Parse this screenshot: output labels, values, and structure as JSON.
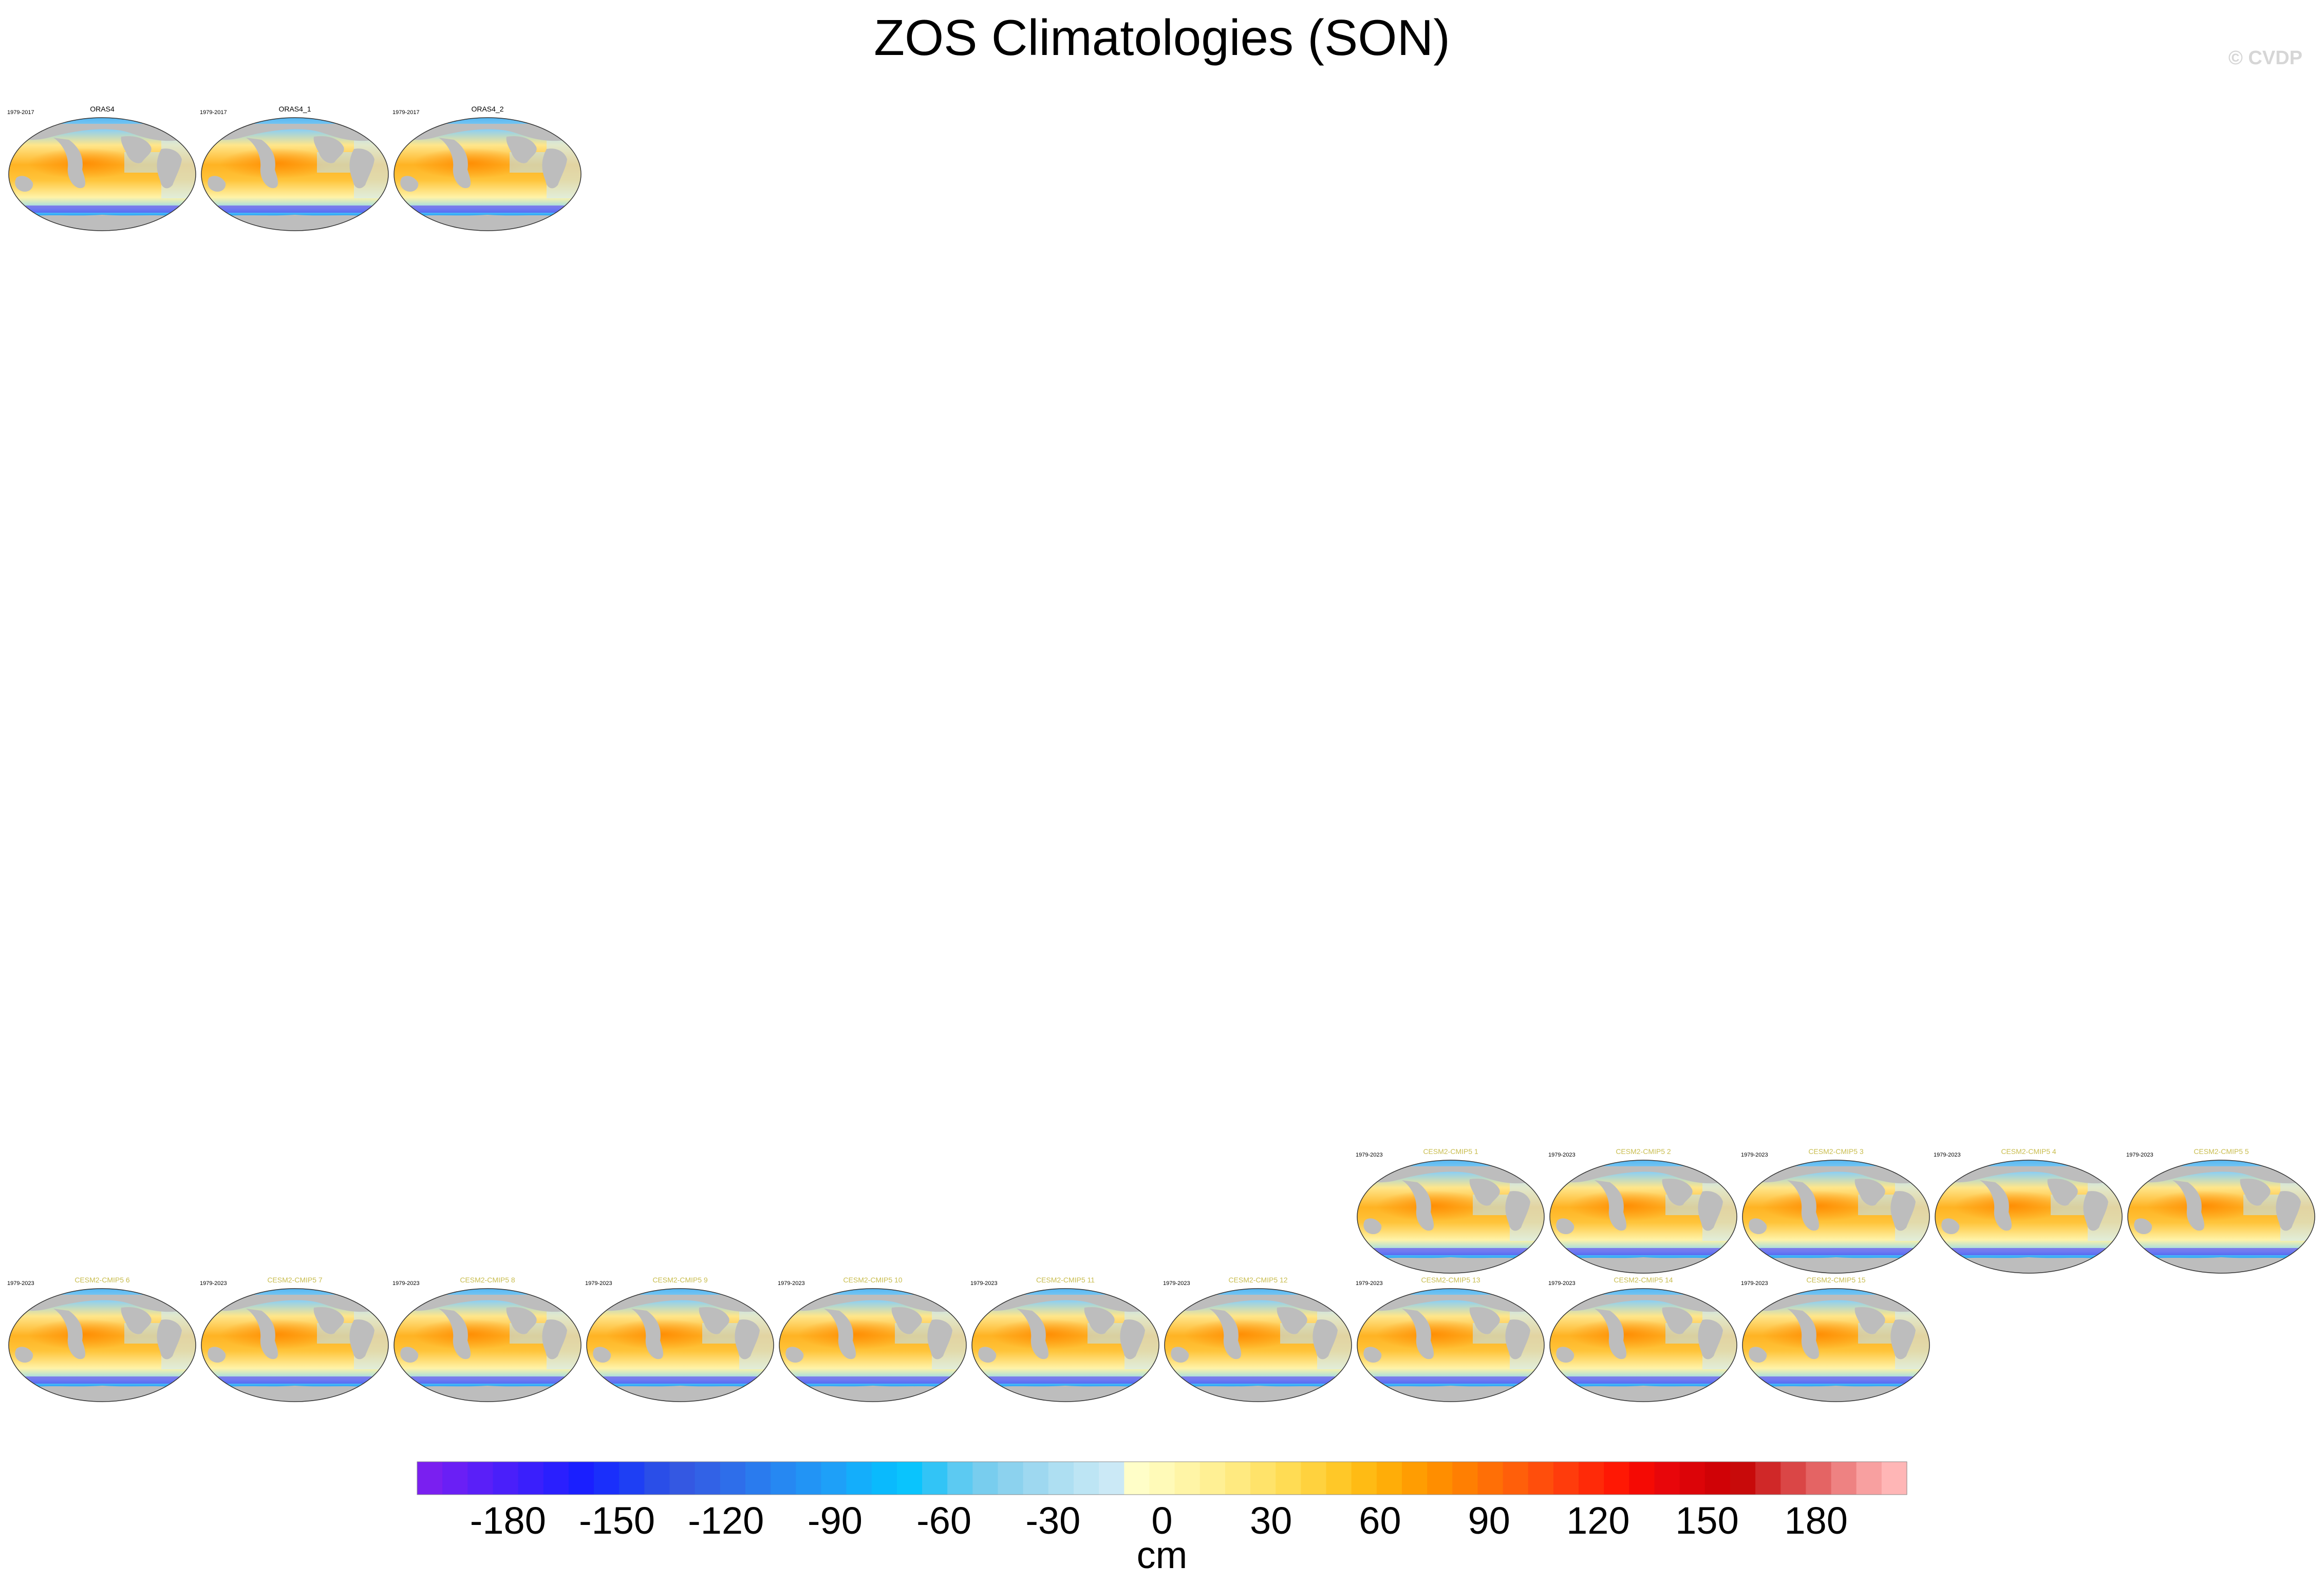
{
  "title": "ZOS Climatologies (SON)",
  "watermark": "© CVDP",
  "colors": {
    "land": "#bdbdbd",
    "southern_ocean": "#5a2df0",
    "sim_title": "#c9bd4f"
  },
  "observations": [
    {
      "name": "ORAS4",
      "period": "1979-2017"
    },
    {
      "name": "ORAS4_1",
      "period": "1979-2017"
    },
    {
      "name": "ORAS4_2",
      "period": "1979-2017"
    }
  ],
  "simulations_row1": [
    {
      "name": "CESM2-CMIP5 1",
      "period": "1979-2023"
    },
    {
      "name": "CESM2-CMIP5 2",
      "period": "1979-2023"
    },
    {
      "name": "CESM2-CMIP5 3",
      "period": "1979-2023"
    },
    {
      "name": "CESM2-CMIP5 4",
      "period": "1979-2023"
    },
    {
      "name": "CESM2-CMIP5 5",
      "period": "1979-2023"
    }
  ],
  "simulations_row2": [
    {
      "name": "CESM2-CMIP5 6",
      "period": "1979-2023"
    },
    {
      "name": "CESM2-CMIP5 7",
      "period": "1979-2023"
    },
    {
      "name": "CESM2-CMIP5 8",
      "period": "1979-2023"
    },
    {
      "name": "CESM2-CMIP5 9",
      "period": "1979-2023"
    },
    {
      "name": "CESM2-CMIP5 10",
      "period": "1979-2023"
    },
    {
      "name": "CESM2-CMIP5 11",
      "period": "1979-2023"
    },
    {
      "name": "CESM2-CMIP5 12",
      "period": "1979-2023"
    },
    {
      "name": "CESM2-CMIP5 13",
      "period": "1979-2023"
    },
    {
      "name": "CESM2-CMIP5 14",
      "period": "1979-2023"
    },
    {
      "name": "CESM2-CMIP5 15",
      "period": "1979-2023"
    }
  ],
  "chart_data": {
    "type": "heatmap",
    "title": "ZOS Climatologies (SON)",
    "projection": "robinson",
    "colorbar": {
      "label": "cm",
      "min": -200,
      "max": 200,
      "step": 10,
      "tick_values": [
        -180,
        -150,
        -120,
        -90,
        -60,
        -30,
        0,
        30,
        60,
        90,
        120,
        150,
        180
      ],
      "tick_labels": [
        "-180",
        "-150",
        "-120",
        "-90",
        "-60",
        "-30",
        "0",
        "30",
        "60",
        "90",
        "120",
        "150",
        "180"
      ],
      "colors": [
        "#7a1ff0",
        "#6a1ff5",
        "#5a1ff8",
        "#4a1ffa",
        "#3a1ffc",
        "#2a1ffe",
        "#1a1fff",
        "#1a2ffb",
        "#1e3ff4",
        "#2a4ee8",
        "#3458e2",
        "#3262e6",
        "#2e6eea",
        "#2a7bee",
        "#2688f2",
        "#2294f5",
        "#1ea0f8",
        "#14aefb",
        "#0abafd",
        "#0ac4fd",
        "#32c4f6",
        "#5ccaf2",
        "#78cdee",
        "#8cd2ee",
        "#9ed8f0",
        "#aedff2",
        "#bde5f4",
        "#cbe9f6",
        "#fffec8",
        "#fffab8",
        "#fff5a6",
        "#fff094",
        "#ffea80",
        "#ffe36a",
        "#ffdc54",
        "#ffd23e",
        "#ffc828",
        "#ffbb14",
        "#ffad08",
        "#ff9d02",
        "#ff8e00",
        "#ff7f02",
        "#ff6f06",
        "#ff5f0a",
        "#ff4e0c",
        "#ff3c0c",
        "#ff2a08",
        "#ff1804",
        "#f50a04",
        "#e8060a",
        "#dc0408",
        "#d00206",
        "#c80a0a",
        "#d02828",
        "#da4646",
        "#e46464",
        "#ee8282",
        "#f8a0a0",
        "#ffb6b6"
      ]
    }
  }
}
